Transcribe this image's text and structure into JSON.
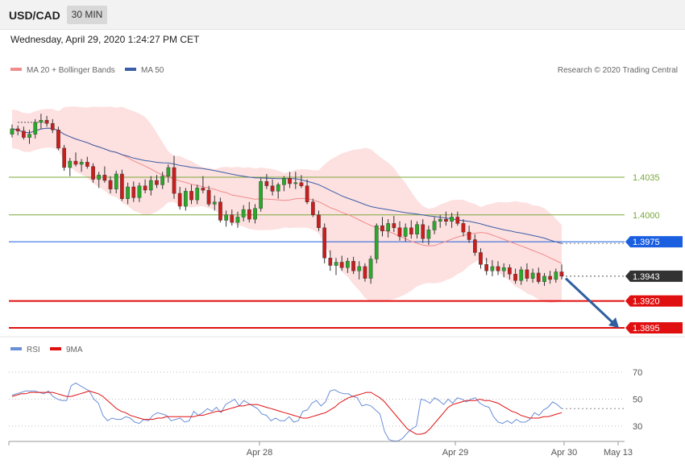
{
  "header": {
    "symbol": "USD/CAD",
    "timeframe": "30 MIN",
    "datetime": "Wednesday, April 29, 2020 1:24:27 PM CET"
  },
  "legend": {
    "ma20": {
      "label": "MA 20 + Bollinger Bands",
      "color": "#f08c8c"
    },
    "ma50": {
      "label": "MA 50",
      "color": "#3a5fa8"
    }
  },
  "credit": "Research © 2020 Trading Central",
  "rsi_legend": {
    "rsi": {
      "label": "RSI",
      "color": "#6a8fd8"
    },
    "ma9": {
      "label": "9MA",
      "color": "#e01010"
    }
  },
  "chart_data": [
    {
      "type": "candlestick",
      "title": "USD/CAD",
      "x_labels": [
        "Apr 28",
        "Apr 29",
        "Apr 30",
        "May 13"
      ],
      "ylim": [
        1.3875,
        1.411
      ],
      "levels": [
        {
          "value": 1.4035,
          "label": "1.4035",
          "kind": "resistance",
          "color": "#7aa83a"
        },
        {
          "value": 1.4,
          "label": "1.4000",
          "kind": "resistance",
          "color": "#7aa83a"
        },
        {
          "value": 1.3975,
          "label": "1.3975",
          "kind": "pivot",
          "color": "#1a5fe0"
        },
        {
          "value": 1.3943,
          "label": "1.3943",
          "kind": "last",
          "color": "#333333"
        },
        {
          "value": 1.392,
          "label": "1.3920",
          "kind": "support",
          "color": "#e01010"
        },
        {
          "value": 1.3895,
          "label": "1.3895",
          "kind": "support",
          "color": "#e01010"
        }
      ],
      "forecast": {
        "from": 1.3941,
        "to": 1.3895,
        "direction": "down"
      },
      "candles": [
        [
          1.4075,
          1.4084,
          1.4072,
          1.408
        ],
        [
          1.408,
          1.4083,
          1.4074,
          1.4078
        ],
        [
          1.4078,
          1.4082,
          1.407,
          1.4072
        ],
        [
          1.4072,
          1.4079,
          1.4066,
          1.4075
        ],
        [
          1.4075,
          1.4089,
          1.4071,
          1.4086
        ],
        [
          1.4086,
          1.4094,
          1.408,
          1.4088
        ],
        [
          1.4088,
          1.4092,
          1.4082,
          1.4085
        ],
        [
          1.4085,
          1.4089,
          1.4076,
          1.4079
        ],
        [
          1.4079,
          1.4082,
          1.406,
          1.4062
        ],
        [
          1.4062,
          1.4065,
          1.4041,
          1.4044
        ],
        [
          1.4044,
          1.4053,
          1.4036,
          1.405
        ],
        [
          1.405,
          1.4058,
          1.4045,
          1.4047
        ],
        [
          1.4047,
          1.4052,
          1.404,
          1.4049
        ],
        [
          1.4049,
          1.4054,
          1.4043,
          1.4045
        ],
        [
          1.4045,
          1.4048,
          1.403,
          1.4033
        ],
        [
          1.4033,
          1.404,
          1.4025,
          1.4037
        ],
        [
          1.4037,
          1.4045,
          1.403,
          1.4032
        ],
        [
          1.4032,
          1.4036,
          1.402,
          1.4024
        ],
        [
          1.4024,
          1.4041,
          1.402,
          1.4038
        ],
        [
          1.4038,
          1.4042,
          1.4013,
          1.4015
        ],
        [
          1.4015,
          1.403,
          1.401,
          1.4026
        ],
        [
          1.4026,
          1.4031,
          1.4012,
          1.4016
        ],
        [
          1.4016,
          1.403,
          1.4012,
          1.4027
        ],
        [
          1.4027,
          1.4033,
          1.402,
          1.4023
        ],
        [
          1.4023,
          1.4036,
          1.4018,
          1.4032
        ],
        [
          1.4032,
          1.4037,
          1.4025,
          1.4028
        ],
        [
          1.4028,
          1.404,
          1.4024,
          1.4036
        ],
        [
          1.4036,
          1.4047,
          1.403,
          1.4044
        ],
        [
          1.4044,
          1.4055,
          1.4015,
          1.402
        ],
        [
          1.402,
          1.4026,
          1.4005,
          1.4008
        ],
        [
          1.4008,
          1.4025,
          1.4004,
          1.4022
        ],
        [
          1.4022,
          1.4028,
          1.401,
          1.4014
        ],
        [
          1.4014,
          1.4028,
          1.401,
          1.4025
        ],
        [
          1.4025,
          1.4036,
          1.402,
          1.4023
        ],
        [
          1.4023,
          1.4027,
          1.4008,
          1.401
        ],
        [
          1.401,
          1.4018,
          1.4004,
          1.4012
        ],
        [
          1.4012,
          1.4016,
          1.3993,
          1.3995
        ],
        [
          1.3995,
          1.4004,
          1.3989,
          1.4
        ],
        [
          1.4,
          1.4005,
          1.399,
          1.3993
        ],
        [
          1.3993,
          1.4003,
          1.3988,
          1.3998
        ],
        [
          1.3998,
          1.4009,
          1.3994,
          1.4005
        ],
        [
          1.4005,
          1.4012,
          1.3993,
          1.3996
        ],
        [
          1.3996,
          1.401,
          1.3992,
          1.4006
        ],
        [
          1.4006,
          1.4034,
          1.4003,
          1.4031
        ],
        [
          1.4031,
          1.4038,
          1.4024,
          1.4027
        ],
        [
          1.4027,
          1.4033,
          1.4018,
          1.4022
        ],
        [
          1.4022,
          1.403,
          1.4015,
          1.4028
        ],
        [
          1.4028,
          1.4036,
          1.4022,
          1.4034
        ],
        [
          1.4034,
          1.404,
          1.4025,
          1.4029
        ],
        [
          1.4029,
          1.404,
          1.4024,
          1.403
        ],
        [
          1.403,
          1.4037,
          1.4025,
          1.4027
        ],
        [
          1.4027,
          1.4033,
          1.401,
          1.4012
        ],
        [
          1.4012,
          1.4015,
          1.3998,
          1.4
        ],
        [
          1.4,
          1.4004,
          1.3985,
          1.3988
        ],
        [
          1.3988,
          1.3992,
          1.3955,
          1.396
        ],
        [
          1.396,
          1.3967,
          1.3948,
          1.3953
        ],
        [
          1.3953,
          1.396,
          1.3944,
          1.3956
        ],
        [
          1.3956,
          1.3962,
          1.3948,
          1.3951
        ],
        [
          1.3951,
          1.396,
          1.3946,
          1.3957
        ],
        [
          1.3957,
          1.3961,
          1.3945,
          1.3948
        ],
        [
          1.3948,
          1.3957,
          1.394,
          1.3952
        ],
        [
          1.3952,
          1.3955,
          1.3938,
          1.3941
        ],
        [
          1.3941,
          1.3962,
          1.3936,
          1.3959
        ],
        [
          1.3959,
          1.3992,
          1.3955,
          1.399
        ],
        [
          1.399,
          1.3998,
          1.398,
          1.3985
        ],
        [
          1.3985,
          1.3996,
          1.3979,
          1.3992
        ],
        [
          1.3992,
          1.3999,
          1.3984,
          1.3988
        ],
        [
          1.3988,
          1.3994,
          1.3976,
          1.398
        ],
        [
          1.398,
          1.3992,
          1.3975,
          1.3988
        ],
        [
          1.3988,
          1.3995,
          1.3978,
          1.3982
        ],
        [
          1.3982,
          1.3994,
          1.3978,
          1.3991
        ],
        [
          1.3991,
          1.3996,
          1.3974,
          1.3978
        ],
        [
          1.3978,
          1.399,
          1.3972,
          1.3986
        ],
        [
          1.3986,
          1.3998,
          1.3982,
          1.3994
        ],
        [
          1.3994,
          1.4,
          1.3988,
          1.3996
        ],
        [
          1.3996,
          1.4003,
          1.399,
          1.3994
        ],
        [
          1.3994,
          1.4002,
          1.3988,
          1.3998
        ],
        [
          1.3998,
          1.4003,
          1.399,
          1.3992
        ],
        [
          1.3992,
          1.3996,
          1.398,
          1.3984
        ],
        [
          1.3984,
          1.399,
          1.3974,
          1.3977
        ],
        [
          1.3977,
          1.3982,
          1.3962,
          1.3965
        ],
        [
          1.3965,
          1.3969,
          1.395,
          1.3954
        ],
        [
          1.3954,
          1.396,
          1.3944,
          1.3948
        ],
        [
          1.3948,
          1.3958,
          1.3943,
          1.3952
        ],
        [
          1.3952,
          1.3957,
          1.3944,
          1.3948
        ],
        [
          1.3948,
          1.3955,
          1.3942,
          1.3951
        ],
        [
          1.3951,
          1.3954,
          1.394,
          1.3945
        ],
        [
          1.3945,
          1.395,
          1.3936,
          1.3939
        ],
        [
          1.3939,
          1.3952,
          1.3935,
          1.3949
        ],
        [
          1.3949,
          1.3955,
          1.3938,
          1.3941
        ],
        [
          1.3941,
          1.395,
          1.3937,
          1.3946
        ],
        [
          1.3946,
          1.3951,
          1.3936,
          1.3938
        ],
        [
          1.3938,
          1.3946,
          1.3934,
          1.3943
        ],
        [
          1.3943,
          1.3948,
          1.3936,
          1.394
        ],
        [
          1.394,
          1.395,
          1.3937,
          1.3947
        ],
        [
          1.3947,
          1.3954,
          1.394,
          1.3943
        ]
      ]
    },
    {
      "type": "line",
      "title": "RSI",
      "ylim": [
        15,
        80
      ],
      "ticks": [
        30,
        50,
        70
      ],
      "series": [
        {
          "name": "RSI",
          "values": [
            53,
            54,
            55,
            56,
            56,
            56,
            55,
            54,
            56,
            52,
            50,
            49,
            49,
            60,
            62,
            60,
            58,
            56,
            50,
            47,
            38,
            34,
            36,
            35,
            35,
            37,
            36,
            33,
            32,
            35,
            34,
            38,
            40,
            39,
            38,
            34,
            35,
            36,
            33,
            34,
            41,
            38,
            40,
            43,
            41,
            44,
            40,
            46,
            48,
            50,
            45,
            49,
            47,
            45,
            43,
            39,
            38,
            34,
            36,
            34,
            34,
            37,
            33,
            34,
            41,
            42,
            47,
            49,
            45,
            48,
            56,
            57,
            55,
            54,
            54,
            52,
            51,
            45,
            46,
            45,
            42,
            39,
            26,
            20,
            19,
            19,
            21,
            25,
            28,
            30,
            50,
            49,
            47,
            51,
            49,
            46,
            50,
            47,
            51,
            50,
            48,
            50,
            51,
            47,
            45,
            44,
            37,
            33,
            32,
            34,
            32,
            35,
            33,
            33,
            35,
            40,
            38,
            42,
            44,
            48,
            46,
            43
          ]
        },
        {
          "name": "9MA",
          "values": [
            52,
            53,
            54,
            54,
            55,
            55,
            55,
            55,
            55,
            55,
            54,
            53,
            52,
            52,
            53,
            54,
            55,
            56,
            55,
            54,
            52,
            49,
            46,
            43,
            41,
            40,
            38,
            37,
            36,
            35,
            35,
            35,
            36,
            36,
            37,
            37,
            37,
            37,
            37,
            37,
            37,
            38,
            38,
            39,
            40,
            41,
            41,
            42,
            43,
            44,
            45,
            45,
            46,
            46,
            46,
            45,
            44,
            43,
            42,
            41,
            40,
            39,
            38,
            37,
            36,
            36,
            37,
            38,
            39,
            40,
            42,
            44,
            47,
            49,
            51,
            52,
            53,
            54,
            55,
            55,
            53,
            51,
            48,
            44,
            40,
            36,
            32,
            28,
            26,
            24,
            24,
            25,
            28,
            32,
            36,
            40,
            44,
            46,
            47,
            48,
            49,
            49,
            49,
            50,
            49,
            49,
            48,
            47,
            45,
            43,
            41,
            40,
            38,
            37,
            36,
            36,
            36,
            37,
            37,
            38,
            39,
            40
          ]
        }
      ],
      "reference_lines": [
        70,
        50,
        30
      ]
    }
  ]
}
